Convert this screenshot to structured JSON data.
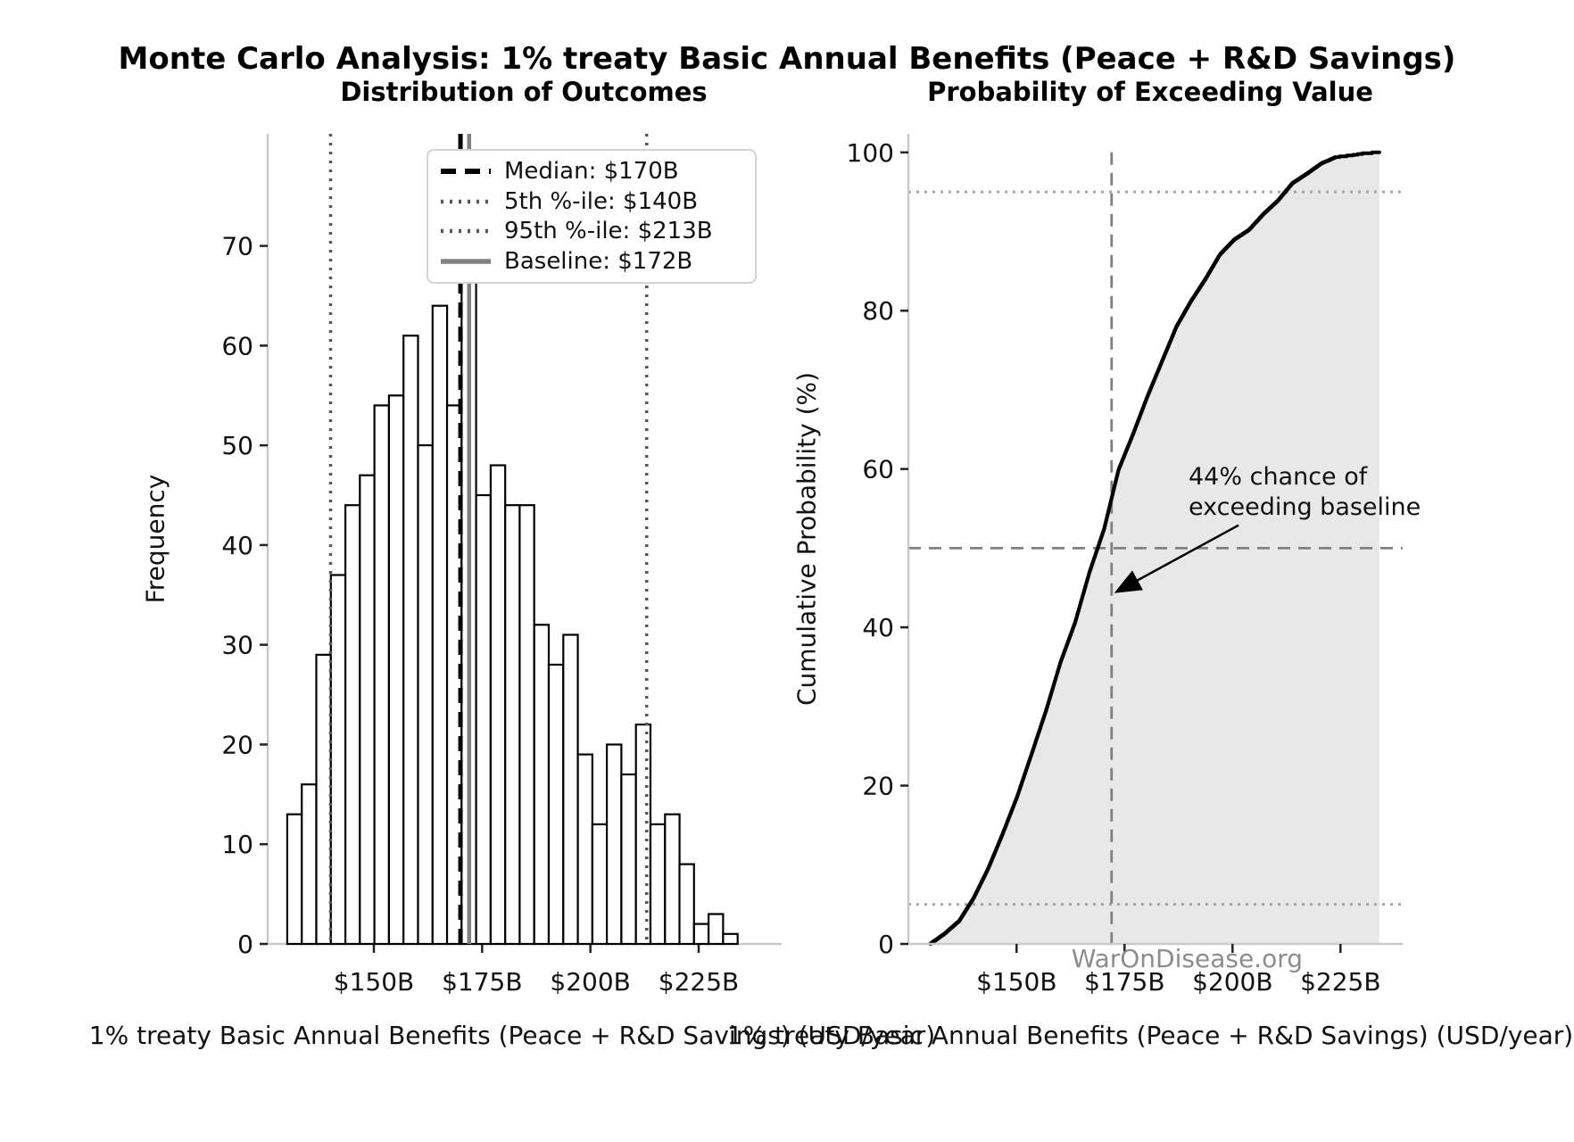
{
  "figure": {
    "title": "Monte Carlo Analysis: 1% treaty Basic Annual Benefits (Peace + R&D Savings)",
    "watermark": "WarOnDisease.org"
  },
  "chart_data": [
    {
      "id": "histogram",
      "type": "bar",
      "title": "Distribution of Outcomes",
      "xlabel": "1% treaty Basic Annual Benefits (Peace + R&D Savings) (USD/year)",
      "ylabel": "Frequency",
      "n_samples": 1000,
      "bins": {
        "start": 130,
        "width": 3.3548,
        "unit": "USD billions"
      },
      "values": [
        13,
        16,
        29,
        37,
        44,
        47,
        54,
        55,
        61,
        50,
        64,
        54,
        75,
        45,
        48,
        44,
        44,
        32,
        28,
        31,
        19,
        12,
        20,
        17,
        22,
        12,
        13,
        8,
        2,
        3,
        1
      ],
      "x_ticks": [
        {
          "v": 150,
          "label": "$150B"
        },
        {
          "v": 175,
          "label": "$175B"
        },
        {
          "v": 200,
          "label": "$200B"
        },
        {
          "v": 225,
          "label": "$225B"
        }
      ],
      "y_ticks": [
        0,
        10,
        20,
        30,
        40,
        50,
        60,
        70
      ],
      "ylim": [
        0,
        81.2
      ],
      "xlim": [
        125.5,
        243.5
      ],
      "grid": false,
      "bar_fill": "#ffffff",
      "bar_edge": "#000000",
      "ref_lines": [
        {
          "x": 170,
          "style": "dash-black",
          "legend_label": "Median: $170B"
        },
        {
          "x": 140,
          "style": "dot-gray",
          "legend_label": "5th %-ile: $140B"
        },
        {
          "x": 213,
          "style": "dot-gray",
          "legend_label": "95th %-ile: $213B"
        },
        {
          "x": 172,
          "style": "solid-gray",
          "legend_label": "Baseline: $172B"
        }
      ],
      "legend_position": "upper right"
    },
    {
      "id": "cdf",
      "type": "line",
      "title": "Probability of Exceeding Value",
      "xlabel": "1% treaty Basic Annual Benefits (Peace + R&D Savings) (USD/year)",
      "ylabel": "Cumulative Probability (%)",
      "x_start": 130,
      "x_step": 3.3548,
      "cumulative_pct": [
        1.3,
        2.9,
        5.8,
        9.5,
        13.9,
        18.6,
        24.0,
        29.5,
        35.6,
        40.6,
        47.0,
        52.4,
        59.9,
        64.4,
        69.2,
        73.6,
        78.0,
        81.2,
        84.0,
        87.1,
        89.0,
        90.2,
        92.2,
        93.9,
        96.1,
        97.3,
        98.6,
        99.4,
        99.6,
        99.9,
        100.0
      ],
      "x_ticks": [
        {
          "v": 150,
          "label": "$150B"
        },
        {
          "v": 175,
          "label": "$175B"
        },
        {
          "v": 200,
          "label": "$200B"
        },
        {
          "v": 225,
          "label": "$225B"
        }
      ],
      "y_ticks": [
        0,
        20,
        40,
        60,
        80,
        100
      ],
      "ylim": [
        0,
        102.3
      ],
      "grid": false,
      "line_color": "#000000",
      "fill_color": "#e8e8e8",
      "ref_lines_h": [
        {
          "y": 95,
          "style": "dot-lightgray"
        },
        {
          "y": 5,
          "style": "dot-lightgray"
        },
        {
          "y": 50,
          "style": "dash-gray"
        }
      ],
      "ref_lines_v": [
        {
          "x": 172,
          "style": "dash-gray",
          "meaning": "baseline"
        }
      ],
      "annotation": {
        "line1": "44% chance of",
        "line2": "exceeding baseline",
        "arrow_from": {
          "x": 201.4,
          "y": 52.9
        },
        "arrow_to": {
          "x": 173.5,
          "y": 44.6
        }
      }
    }
  ]
}
